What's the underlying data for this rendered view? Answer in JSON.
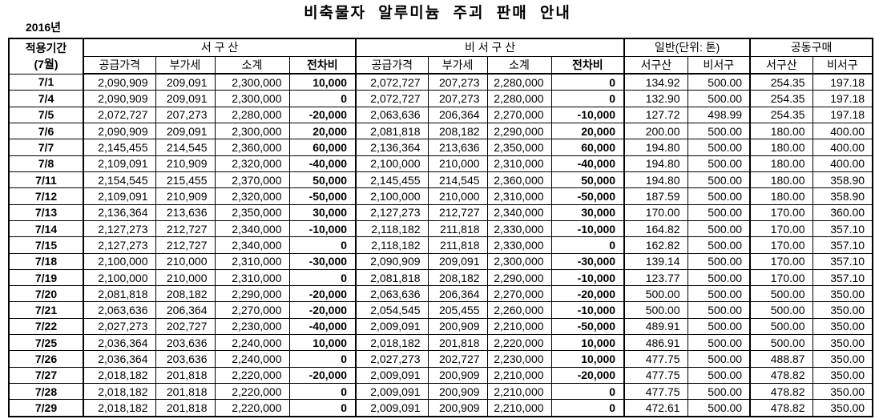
{
  "title": "비축물자 알루미늄 주괴 판매 안내",
  "year_label": "2016년",
  "table": {
    "header": {
      "period_line1": "적용기간",
      "period_line2": "(7월)",
      "group_west": "서 구 산",
      "group_nonwest": "비 서 구 산",
      "group_general": "일반(단위: 톤)",
      "group_joint": "공동구매",
      "price_cols": [
        "공급가격",
        "부가세",
        "소계",
        "전차비"
      ],
      "origin_cols": [
        "서구산",
        "비서구"
      ]
    },
    "rows": [
      [
        "7/1",
        "2,090,909",
        "209,091",
        "2,300,000",
        "10,000",
        "2,072,727",
        "207,273",
        "2,280,000",
        "0",
        "134.92",
        "500.00",
        "254.35",
        "197.18"
      ],
      [
        "7/4",
        "2,090,909",
        "209,091",
        "2,300,000",
        "0",
        "2,072,727",
        "207,273",
        "2,280,000",
        "0",
        "132.90",
        "500.00",
        "254.35",
        "197.18"
      ],
      [
        "7/5",
        "2,072,727",
        "207,273",
        "2,280,000",
        "-20,000",
        "2,063,636",
        "206,364",
        "2,270,000",
        "-10,000",
        "127.72",
        "498.99",
        "254.35",
        "197.18"
      ],
      [
        "7/6",
        "2,090,909",
        "209,091",
        "2,300,000",
        "20,000",
        "2,081,818",
        "208,182",
        "2,290,000",
        "20,000",
        "200.00",
        "500.00",
        "180.00",
        "400.00"
      ],
      [
        "7/7",
        "2,145,455",
        "214,545",
        "2,360,000",
        "60,000",
        "2,136,364",
        "213,636",
        "2,350,000",
        "60,000",
        "194.80",
        "500.00",
        "180.00",
        "400.00"
      ],
      [
        "7/8",
        "2,109,091",
        "210,909",
        "2,320,000",
        "-40,000",
        "2,100,000",
        "210,000",
        "2,310,000",
        "-40,000",
        "194.80",
        "500.00",
        "180.00",
        "400.00"
      ],
      [
        "7/11",
        "2,154,545",
        "215,455",
        "2,370,000",
        "50,000",
        "2,145,455",
        "214,545",
        "2,360,000",
        "50,000",
        "194.80",
        "500.00",
        "180.00",
        "358.90"
      ],
      [
        "7/12",
        "2,109,091",
        "210,909",
        "2,320,000",
        "-50,000",
        "2,100,000",
        "210,000",
        "2,310,000",
        "-50,000",
        "187.59",
        "500.00",
        "180.00",
        "358.90"
      ],
      [
        "7/13",
        "2,136,364",
        "213,636",
        "2,350,000",
        "30,000",
        "2,127,273",
        "212,727",
        "2,340,000",
        "30,000",
        "170.00",
        "500.00",
        "170.00",
        "360.00"
      ],
      [
        "7/14",
        "2,127,273",
        "212,727",
        "2,340,000",
        "-10,000",
        "2,118,182",
        "211,818",
        "2,330,000",
        "-10,000",
        "164.82",
        "500.00",
        "170.00",
        "357.10"
      ],
      [
        "7/15",
        "2,127,273",
        "212,727",
        "2,340,000",
        "0",
        "2,118,182",
        "211,818",
        "2,330,000",
        "0",
        "162.82",
        "500.00",
        "170.00",
        "357.10"
      ],
      [
        "7/18",
        "2,100,000",
        "210,000",
        "2,310,000",
        "-30,000",
        "2,090,909",
        "209,091",
        "2,300,000",
        "-30,000",
        "139.14",
        "500.00",
        "170.00",
        "357.10"
      ],
      [
        "7/19",
        "2,100,000",
        "210,000",
        "2,310,000",
        "0",
        "2,081,818",
        "208,182",
        "2,290,000",
        "-10,000",
        "123.77",
        "500.00",
        "170.00",
        "357.10"
      ],
      [
        "7/20",
        "2,081,818",
        "208,182",
        "2,290,000",
        "-20,000",
        "2,063,636",
        "206,364",
        "2,270,000",
        "-20,000",
        "500.00",
        "500.00",
        "500.00",
        "350.00"
      ],
      [
        "7/21",
        "2,063,636",
        "206,364",
        "2,270,000",
        "-20,000",
        "2,054,545",
        "205,455",
        "2,260,000",
        "-10,000",
        "500.00",
        "500.00",
        "500.00",
        "350.00"
      ],
      [
        "7/22",
        "2,027,273",
        "202,727",
        "2,230,000",
        "-40,000",
        "2,009,091",
        "200,909",
        "2,210,000",
        "-50,000",
        "489.91",
        "500.00",
        "500.00",
        "350.00"
      ],
      [
        "7/25",
        "2,036,364",
        "203,636",
        "2,240,000",
        "10,000",
        "2,018,182",
        "201,818",
        "2,220,000",
        "10,000",
        "486.91",
        "500.00",
        "500.00",
        "350.00"
      ],
      [
        "7/26",
        "2,036,364",
        "203,636",
        "2,240,000",
        "0",
        "2,027,273",
        "202,727",
        "2,230,000",
        "10,000",
        "477.75",
        "500.00",
        "488.87",
        "350.00"
      ],
      [
        "7/27",
        "2,018,182",
        "201,818",
        "2,220,000",
        "-20,000",
        "2,009,091",
        "200,909",
        "2,210,000",
        "-20,000",
        "477.75",
        "500.00",
        "478.82",
        "350.00"
      ],
      [
        "7/28",
        "2,018,182",
        "201,818",
        "2,220,000",
        "0",
        "2,009,091",
        "200,909",
        "2,210,000",
        "0",
        "477.75",
        "500.00",
        "478.82",
        "350.00"
      ],
      [
        "7/29",
        "2,018,182",
        "201,818",
        "2,220,000",
        "0",
        "2,009,091",
        "200,909",
        "2,210,000",
        "0",
        "472.61",
        "500.00",
        "478.82",
        "350.00"
      ]
    ]
  }
}
